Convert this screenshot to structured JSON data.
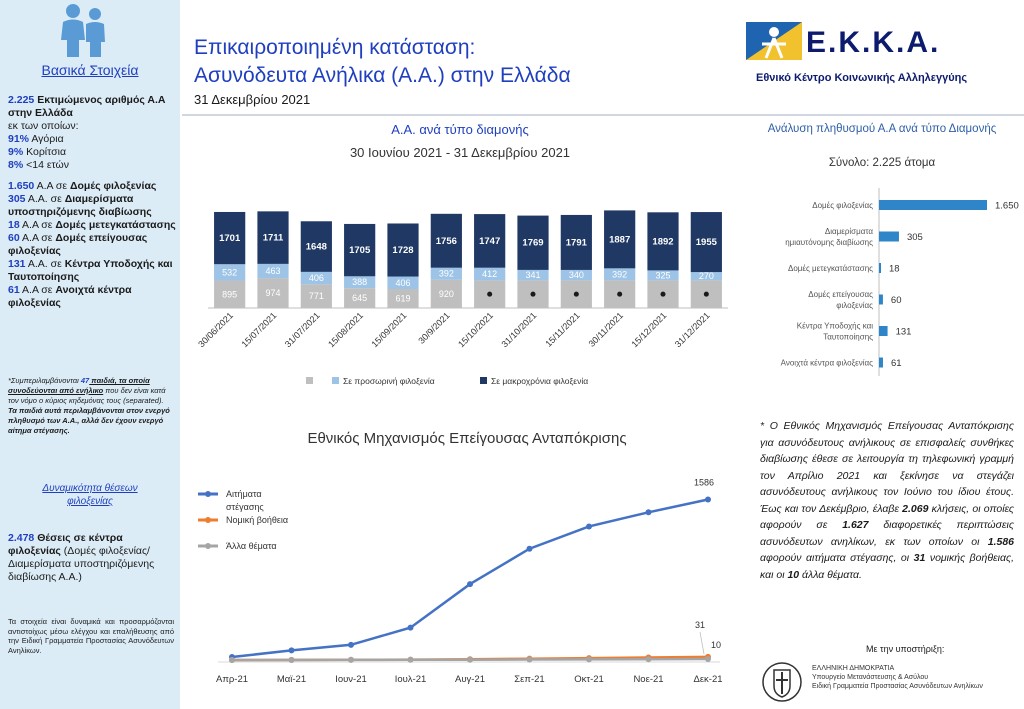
{
  "header": {
    "title_line1": "Επικαιροποιημένη κατάσταση:",
    "title_line2": "Ασυνόδευτα Ανήλικα (Α.Α.) στην Ελλάδα",
    "date": "31 Δεκεμβρίου 2021"
  },
  "org": {
    "name": "Ε.Κ.Κ.Α.",
    "full_name": "Εθνικό Κέντρο Κοινωνικής Αλληλεγγύης"
  },
  "sidebar": {
    "title": "Βασικά Στοιχεία",
    "stat_total": {
      "num": "2.225",
      "text": "Εκτιμώμενος αριθμός Α.Α στην Ελλάδα"
    },
    "of_which": "εκ των οποίων:",
    "boys": {
      "num": "91%",
      "text": "Αγόρια"
    },
    "girls": {
      "num": "9%",
      "text": "Κορίτσια"
    },
    "under14": {
      "num": "8%",
      "text": "<14 ετών"
    },
    "acc1": {
      "num": "1.650",
      "pre": "Α.Α σε ",
      "text": "Δομές φιλοξενίας"
    },
    "acc2": {
      "num": "305",
      "pre": "Α.Α. σε ",
      "text": "Διαμερίσματα υποστηριζόμενης διαβίωσης"
    },
    "acc3": {
      "num": "18",
      "pre": "Α.Α σε ",
      "text": "Δομές μετεγκατάστασης"
    },
    "acc4": {
      "num": "60",
      "pre": "Α.Α σε ",
      "text": "Δομές επείγουσας φιλοξενίας"
    },
    "acc5": {
      "num": "131",
      "pre": "Α.Α. σε ",
      "text": "Κέντρα Υποδοχής και Ταυτοποίησης"
    },
    "acc6": {
      "num": "61",
      "pre": "Α.Α σε ",
      "text": "Ανοιχτά κέντρα φιλοξενίας"
    },
    "note_pre": "*Συμπεριλαμβάνονται ",
    "note_num": "47",
    "note_bold": " παιδιά, τα οποία συνοδεύονται από ενήλικο",
    "note_rest": " που δεν είναι κατά τον νόμο ο κύριος κηδεμόνας τους (separated).",
    "note_bold2": "Τα παιδιά αυτά περιλαμβάνονται στον ενεργό πληθυσμό των Α.Α., αλλά δεν έχουν ενεργό αίτημα στέγασης.",
    "sub_title": "Δυναμικότητα θέσεων φιλοξενίας",
    "places_num": "2.478",
    "places_bold": " Θέσεις σε κέντρα φιλοξενίας",
    "places_rest": " (Δομές φιλοξενίας/Διαμερίσματα υποστηριζόμενης διαβίωσης Α.Α.)",
    "footnote": "Τα στοιχεία είναι δυναμικά και προσαρμόζονται αντιστοίχως μέσω ελέγχου και επαλήθευσης από την Ειδική Γραμματεία Προστασίας Ασυνόδευτων Ανηλίκων."
  },
  "bar_section": {
    "title": "Α.Α. ανά τύπο διαμονής",
    "subtitle": "30 Ιουνίου 2021 - 31 Δεκεμβρίου 2021"
  },
  "hbar_section": {
    "title": "Ανάλυση πληθυσμού Α.Α ανά τύπο Διαμονής",
    "subtitle": "Σύνολο: 2.225 άτομα"
  },
  "line_section": {
    "title": "Εθνικός Μηχανισμός Επείγουσας Ανταπόκρισης"
  },
  "note": {
    "p1": "* Ο Εθνικός Μηχανισμός Επείγουσας Ανταπόκρισης για ασυνόδευτους ανήλικους σε επισφαλείς συνθήκες διαβίωσης έθεσε σε λειτουργία τη τηλεφωνική γραμμή τον Απρίλιο 2021 και ξεκίνησε να στεγάζει ασυνόδευτους ανήλικους τον Ιούνιο του ίδιου έτους. Έως και τον Δεκέμβριο, έλαβε ",
    "n1": "2.069",
    "p2": " κλήσεις, οι οποίες αφορούν σε ",
    "n2": "1.627",
    "p3": " διαφορετικές περιπτώσεις ασυνόδευτων ανηλίκων, εκ των οποίων οι ",
    "n3": "1.586",
    "p4": " αφορούν αιτήματα στέγασης, οι ",
    "n4": "31",
    "p5": " νομικής βοήθειας, και οι ",
    "n5": "10",
    "p6": " άλλα θέματα.",
    "support": "Με την υποστήριξη:",
    "gov1": "ΕΛΛΗΝΙΚΗ ΔΗΜΟΚΡΑΤΙΑ",
    "gov2": "Υπουργείο Μετανάστευσης & Ασύλου",
    "gov3": "Ειδική Γραμματεία Προστασίας Ασυνόδευτων Ανηλίκων"
  },
  "chart_data": [
    {
      "type": "bar",
      "stacked": true,
      "categories": [
        "30/06/2021",
        "15/07/2021",
        "31/07/2021",
        "15/08/2021",
        "15/09/2021",
        "30/9/2021",
        "15/10/2021",
        "31/10/2021",
        "15/11/2021",
        "30/11/2021",
        "15/12/2021",
        "31/12/2021"
      ],
      "series": [
        {
          "name": "",
          "color": "#bfbfbf",
          "values": [
            895,
            974,
            771,
            645,
            619,
            920,
            null,
            null,
            null,
            null,
            null,
            null
          ]
        },
        {
          "name": "Σε προσωρινή φιλοξενία",
          "color": "#9dc3e6",
          "values": [
            532,
            463,
            406,
            388,
            406,
            392,
            412,
            341,
            340,
            392,
            325,
            270
          ]
        },
        {
          "name": "Σε μακροχρόνια φιλοξενία",
          "color": "#1f3864",
          "values": [
            1701,
            1711,
            1648,
            1705,
            1728,
            1756,
            1747,
            1769,
            1791,
            1887,
            1892,
            1955
          ]
        }
      ]
    },
    {
      "type": "bar",
      "orientation": "horizontal",
      "categories": [
        "Δομές φιλοξενίας",
        "Διαμερίσματα ημιαυτόνομης διαβίωσης",
        "Δομές μετεγκατάστασης",
        "Δομές επείγουσας φιλοξενίας",
        "Κέντρα Υποδοχής και Ταυτοποίησης",
        "Ανοιχτά κέντρα φιλοξενίας"
      ],
      "values": [
        1650,
        305,
        18,
        60,
        131,
        61
      ],
      "value_labels": [
        "1.650",
        "305",
        "18",
        "60",
        "131",
        "61"
      ],
      "color": "#2e86c8"
    },
    {
      "type": "line",
      "categories": [
        "Απρ-21",
        "Μαϊ-21",
        "Ιουν-21",
        "Ιουλ-21",
        "Αυγ-21",
        "Σεπ-21",
        "Οκτ-21",
        "Νοε-21",
        "Δεκ-21"
      ],
      "series": [
        {
          "name": "Αιτήματα στέγασης",
          "color": "#4472c4",
          "values": [
            30,
            95,
            150,
            320,
            750,
            1100,
            1320,
            1460,
            1586
          ]
        },
        {
          "name": "Νομική βοήθεια",
          "color": "#ed7d31",
          "values": [
            0,
            1,
            2,
            4,
            8,
            13,
            19,
            25,
            31
          ]
        },
        {
          "name": "Άλλα θέματα",
          "color": "#a5a5a5",
          "values": [
            0,
            0,
            1,
            2,
            3,
            5,
            6,
            8,
            10
          ]
        }
      ],
      "data_labels": {
        "series_0_last": "1586",
        "series_1_last": "31",
        "series_2_last": "10"
      }
    }
  ]
}
